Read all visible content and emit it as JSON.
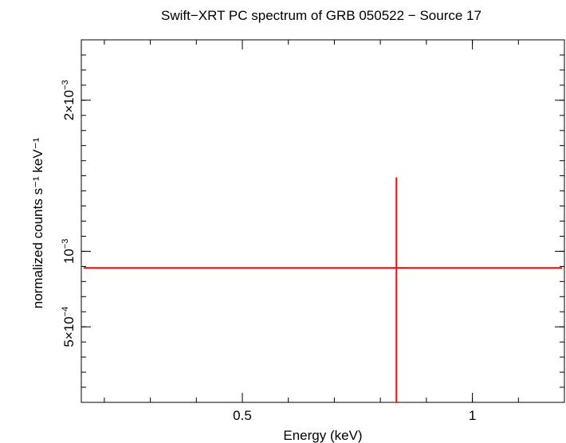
{
  "chart_data": {
    "type": "scatter",
    "title": "Swift−XRT PC spectrum of GRB 050522 − Source 17",
    "xlabel": "Energy (keV)",
    "ylabel": "normalized counts s⁻¹ keV⁻¹",
    "x_scale": "linear",
    "y_scale": "linear",
    "xlim": [
      0.15,
      1.2
    ],
    "ylim": [
      0.0,
      0.0024
    ],
    "x_ticks": [
      {
        "value": 0.5,
        "label": "0.5"
      },
      {
        "value": 1.0,
        "label": "1"
      }
    ],
    "y_ticks": [
      {
        "value": 0.0005,
        "mantissa": "5×10",
        "exp": "−4"
      },
      {
        "value": 0.001,
        "mantissa": "10",
        "exp": "−3"
      },
      {
        "value": 0.002,
        "mantissa": "2×10",
        "exp": "−3"
      }
    ],
    "grid": false,
    "series": [
      {
        "color": "#ff0000",
        "points": [
          {
            "x": 0.835,
            "y": 0.00089,
            "xerr": [
              0.68,
              0.36
            ],
            "yerr": [
              0.00089,
              0.0006
            ]
          }
        ]
      }
    ]
  }
}
